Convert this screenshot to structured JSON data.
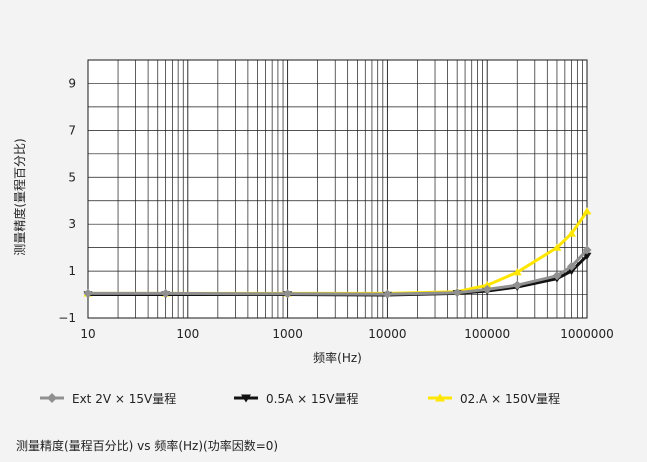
{
  "chart_data": {
    "type": "line",
    "xscale": "log",
    "xlim": [
      10,
      1000000
    ],
    "ylim": [
      -1,
      10
    ],
    "grid": true,
    "legend_position": "bottom",
    "xlabel": "频率(Hz)",
    "ylabel": "测量精度(量程百分比)",
    "x_tick_labels": [
      "10",
      "100",
      "1000",
      "10000",
      "100000",
      "1000000"
    ],
    "y_ticks": [
      -1,
      1,
      3,
      5,
      7,
      9
    ],
    "y_tick_labels": [
      "−1",
      "1",
      "3",
      "5",
      "7",
      "9"
    ],
    "series": [
      {
        "name": "Ext 2V × 15V量程",
        "color": "#909090",
        "marker": "diamond",
        "x": [
          10,
          60,
          1000,
          10000,
          50000,
          100000,
          200000,
          500000,
          700000,
          1000000
        ],
        "y": [
          0.05,
          0.05,
          0.03,
          0.02,
          0.08,
          0.22,
          0.4,
          0.8,
          1.2,
          1.9
        ]
      },
      {
        "name": "0.5A × 15V量程",
        "color": "#111111",
        "marker": "triangle-down",
        "x": [
          10,
          60,
          1000,
          10000,
          50000,
          100000,
          200000,
          500000,
          700000,
          1000000
        ],
        "y": [
          0.0,
          0.0,
          0.0,
          -0.02,
          0.05,
          0.15,
          0.32,
          0.68,
          1.0,
          1.65
        ]
      },
      {
        "name": "02.A × 150V量程",
        "color": "#ffe600",
        "marker": "triangle-up",
        "x": [
          10,
          60,
          1000,
          10000,
          50000,
          100000,
          200000,
          500000,
          700000,
          1000000
        ],
        "y": [
          0.05,
          0.05,
          0.05,
          0.05,
          0.12,
          0.4,
          0.95,
          2.0,
          2.6,
          3.55
        ]
      }
    ]
  },
  "caption": "测量精度(量程百分比) vs 频率(Hz)(功率因数=0)"
}
